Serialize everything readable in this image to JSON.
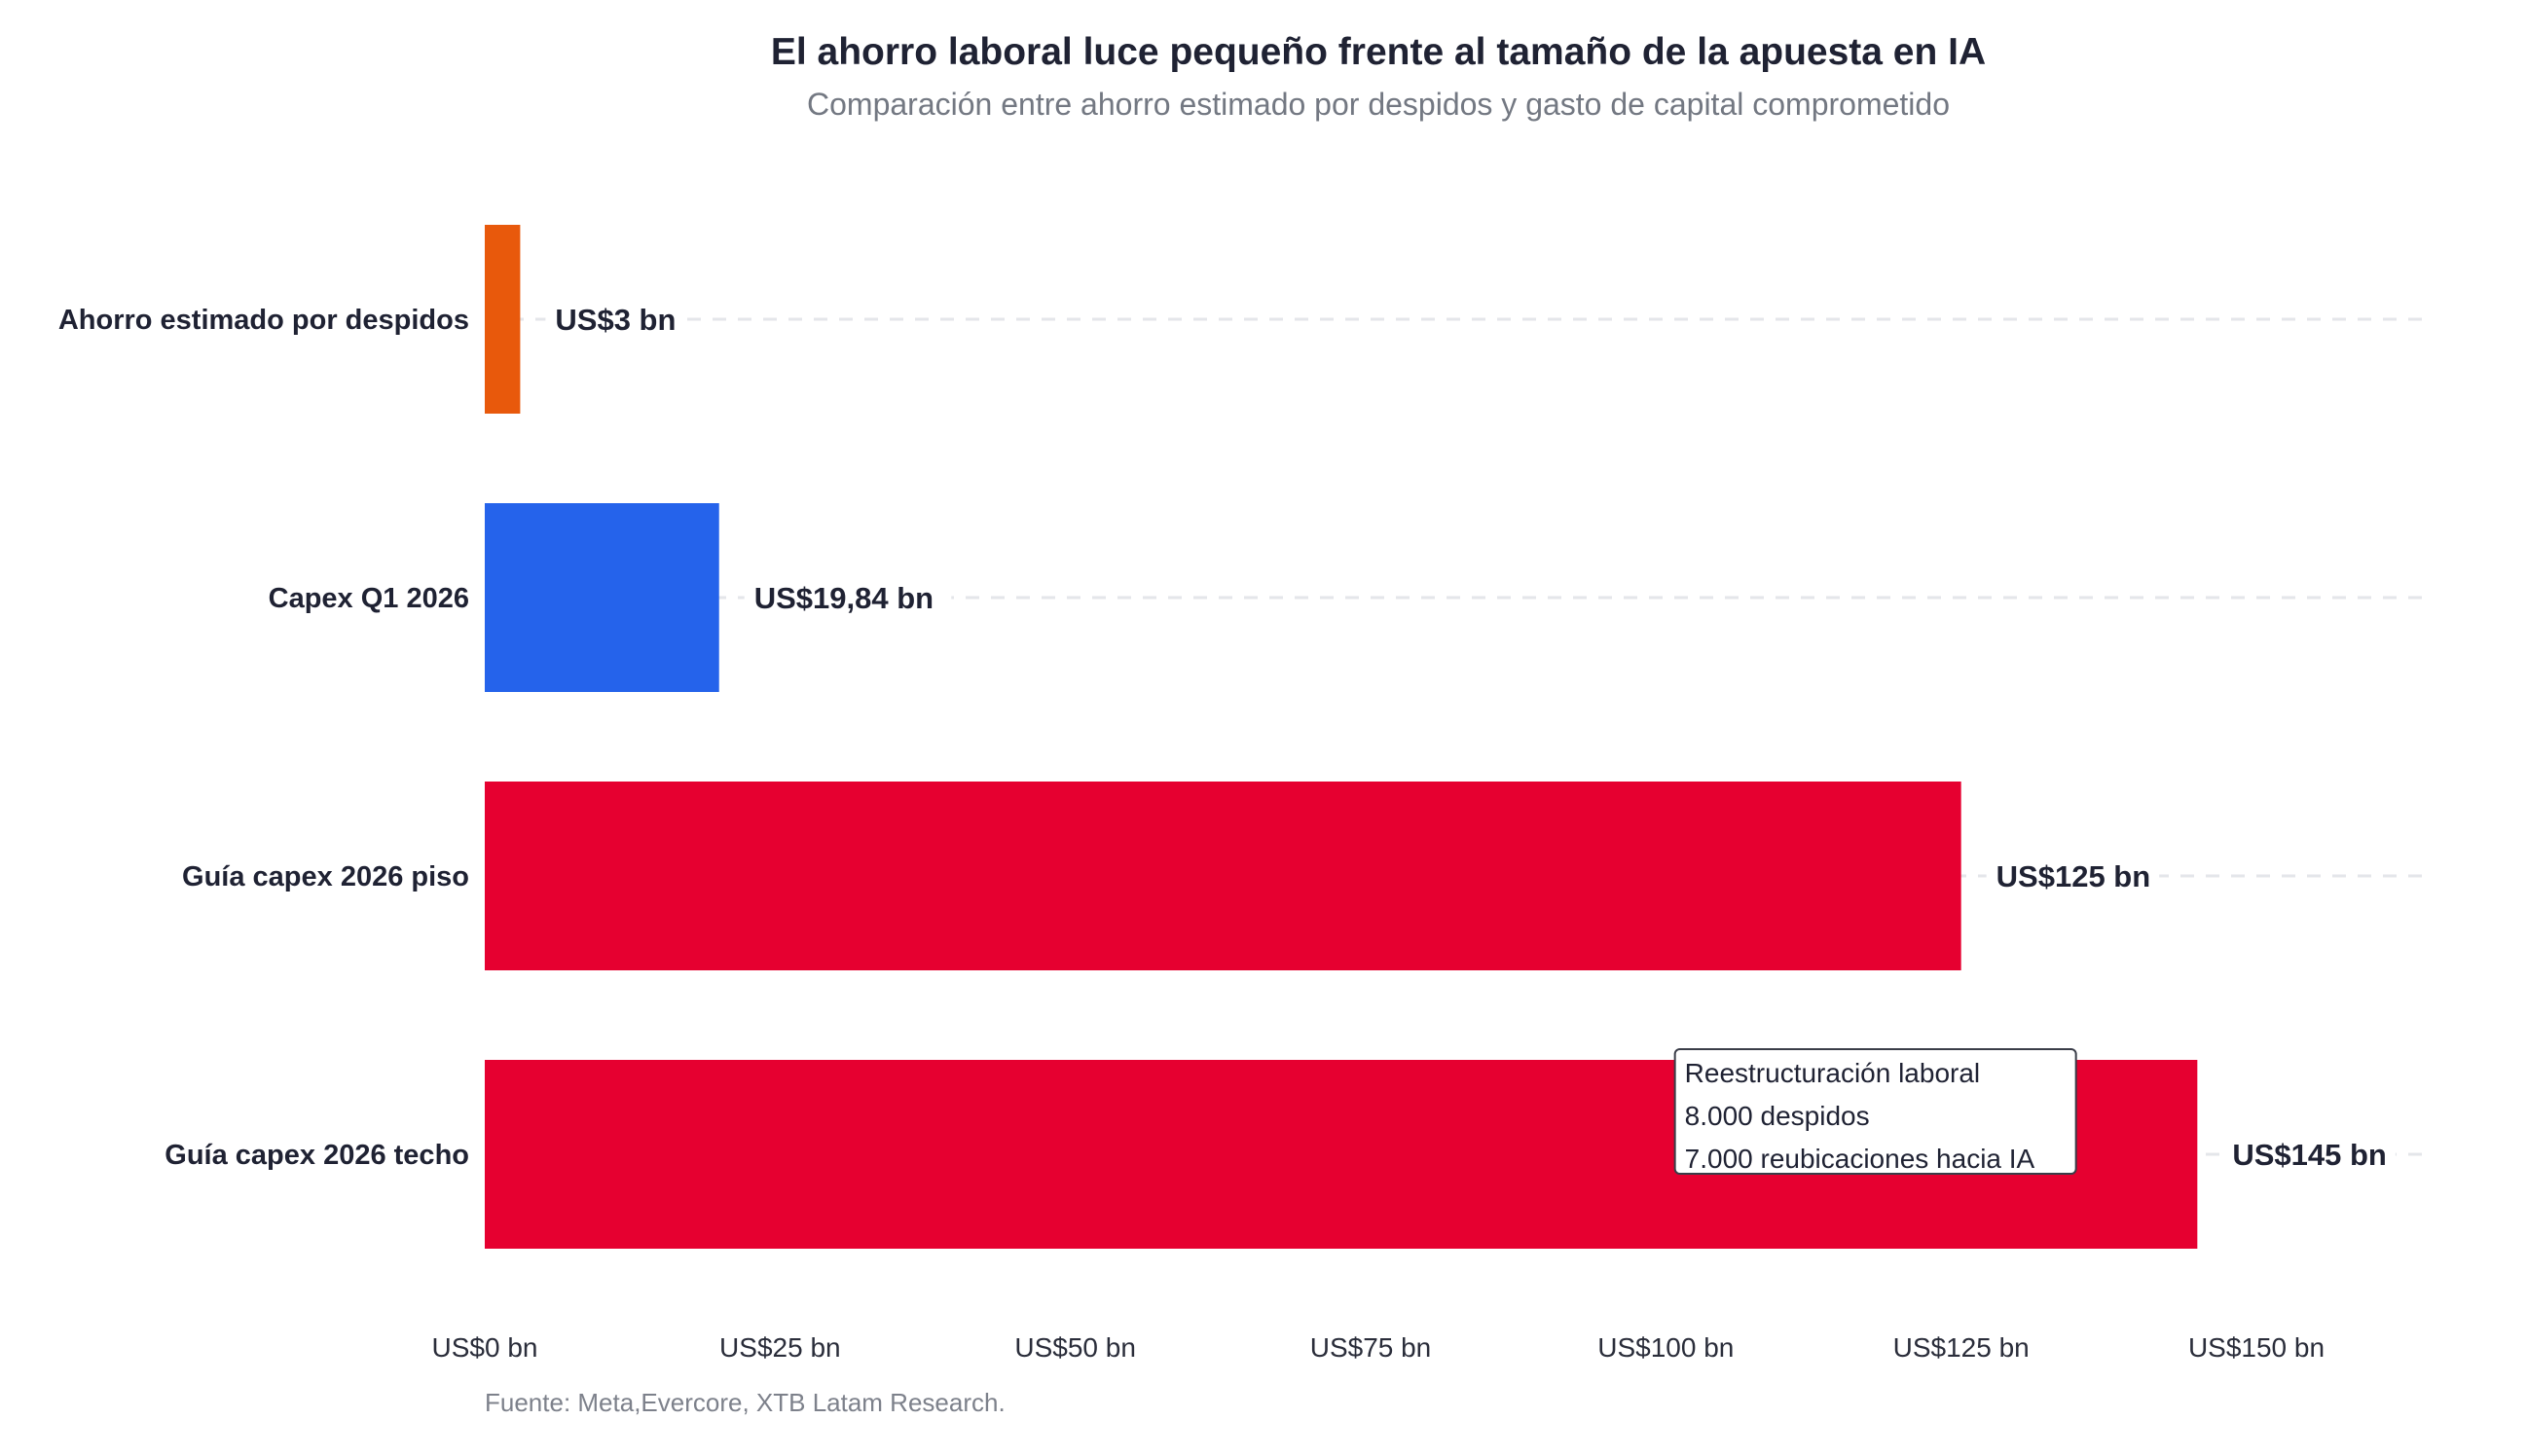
{
  "chart_data": {
    "type": "bar",
    "orientation": "horizontal",
    "title": "El ahorro laboral luce pequeño frente al tamaño de la apuesta en IA",
    "subtitle": "Comparación entre ahorro estimado por despidos y gasto de capital comprometido",
    "categories": [
      "Ahorro estimado por despidos",
      "Capex Q1 2026",
      "Guía capex 2026 piso",
      "Guía capex 2026 techo"
    ],
    "values": [
      3,
      19.84,
      125,
      145
    ],
    "value_labels": [
      "US$3 bn",
      "US$19,84 bn",
      "US$125 bn",
      "US$145 bn"
    ],
    "colors": [
      "#e8590c",
      "#2563eb",
      "#e60030",
      "#e60030"
    ],
    "xlim": [
      0,
      150
    ],
    "x_ticks": [
      0,
      25,
      50,
      75,
      100,
      125,
      150
    ],
    "x_tick_labels": [
      "US$0 bn",
      "US$25 bn",
      "US$50 bn",
      "US$75 bn",
      "US$100 bn",
      "US$125 bn",
      "US$150 bn"
    ],
    "xlabel": "",
    "ylabel": "",
    "grid": "horizontal dashed",
    "legend": "none",
    "annotation": {
      "lines": [
        "Reestructuración laboral",
        "8.000 despidos",
        "7.000 reubicaciones hacia IA"
      ],
      "category": "Guía capex 2026 techo",
      "x_value": 95
    },
    "source": "Fuente: Meta,Evercore, XTB Latam Research."
  }
}
